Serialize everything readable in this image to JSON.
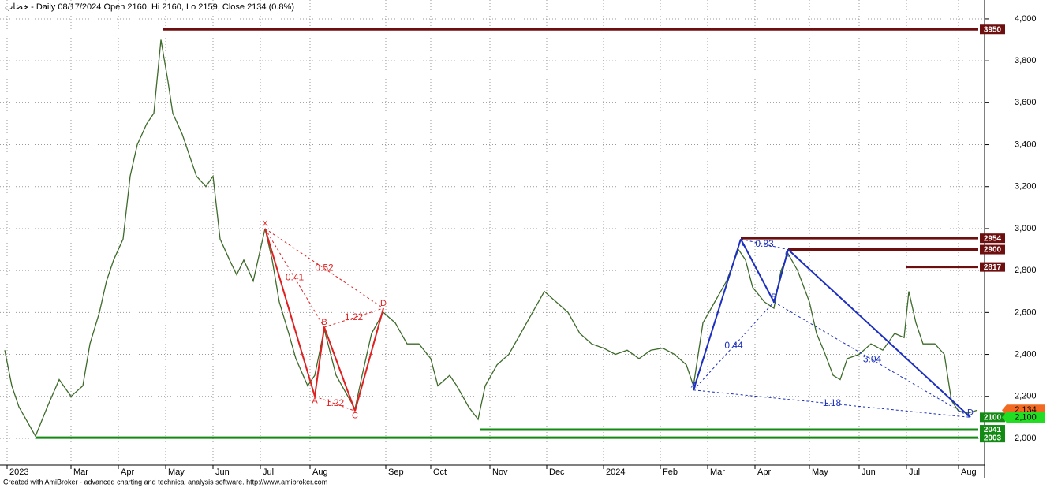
{
  "chart_data": {
    "type": "line",
    "title": "خضاب - Daily 08/17/2024 Open 2160, Hi 2160, Lo 2159, Close 2134 (0.8%)",
    "footer": "Created with AmiBroker - advanced charting and technical analysis software. http://www.amibroker.com",
    "grid": true,
    "xlim": [
      0,
      416
    ],
    "ylim": [
      1872,
      4090
    ],
    "xticks": [
      {
        "value": 3,
        "label": "2023"
      },
      {
        "value": 30,
        "label": "Mar"
      },
      {
        "value": 50,
        "label": "Apr"
      },
      {
        "value": 70,
        "label": "May"
      },
      {
        "value": 90,
        "label": "Jun"
      },
      {
        "value": 110,
        "label": "Jul"
      },
      {
        "value": 131,
        "label": "Aug"
      },
      {
        "value": 163,
        "label": "Sep"
      },
      {
        "value": 182,
        "label": "Oct"
      },
      {
        "value": 207,
        "label": "Nov"
      },
      {
        "value": 231,
        "label": "Dec"
      },
      {
        "value": 255,
        "label": "2024"
      },
      {
        "value": 279,
        "label": "Feb"
      },
      {
        "value": 299,
        "label": "Mar"
      },
      {
        "value": 319,
        "label": "Apr"
      },
      {
        "value": 342,
        "label": "May"
      },
      {
        "value": 363,
        "label": "Jun"
      },
      {
        "value": 383,
        "label": "Jul"
      },
      {
        "value": 405,
        "label": "Aug"
      }
    ],
    "yticks": [
      {
        "value": 2000,
        "label": "2,000"
      },
      {
        "value": 2200,
        "label": "2,200"
      },
      {
        "value": 2400,
        "label": "2,400"
      },
      {
        "value": 2600,
        "label": "2,600"
      },
      {
        "value": 2800,
        "label": "2,800"
      },
      {
        "value": 3000,
        "label": "3,000"
      },
      {
        "value": 3200,
        "label": "3,200"
      },
      {
        "value": 3400,
        "label": "3,400"
      },
      {
        "value": 3600,
        "label": "3,600"
      },
      {
        "value": 3800,
        "label": "3,800"
      },
      {
        "value": 4000,
        "label": "4,000"
      }
    ],
    "series": [
      {
        "name": "Close",
        "color": "#3d6b2a",
        "x": [
          2,
          5,
          8,
          15,
          20,
          25,
          30,
          35,
          38,
          42,
          45,
          48,
          52,
          55,
          58,
          62,
          65,
          68,
          71,
          73,
          77,
          80,
          83,
          87,
          90,
          93,
          97,
          100,
          103,
          107,
          112,
          115,
          118,
          122,
          125,
          130,
          133,
          137,
          142,
          147,
          150,
          153,
          157,
          162,
          167,
          172,
          177,
          182,
          185,
          190,
          193,
          198,
          202,
          205,
          210,
          215,
          220,
          225,
          230,
          235,
          240,
          245,
          250,
          255,
          260,
          265,
          270,
          275,
          280,
          285,
          290,
          293,
          297,
          302,
          307,
          312,
          315,
          318,
          323,
          327,
          330,
          333,
          337,
          342,
          345,
          348,
          352,
          355,
          358,
          363,
          368,
          373,
          378,
          382,
          384,
          387,
          390,
          395,
          399,
          402,
          405,
          409,
          413
        ],
        "values": [
          2420,
          2250,
          2150,
          2010,
          2150,
          2280,
          2200,
          2250,
          2450,
          2600,
          2750,
          2850,
          2950,
          3250,
          3400,
          3500,
          3550,
          3900,
          3700,
          3550,
          3450,
          3350,
          3250,
          3200,
          3250,
          2950,
          2850,
          2780,
          2850,
          2750,
          3000,
          2850,
          2650,
          2500,
          2380,
          2250,
          2300,
          2520,
          2300,
          2200,
          2140,
          2300,
          2500,
          2600,
          2550,
          2450,
          2450,
          2380,
          2250,
          2300,
          2250,
          2150,
          2090,
          2250,
          2350,
          2400,
          2500,
          2600,
          2700,
          2650,
          2600,
          2500,
          2450,
          2430,
          2400,
          2420,
          2380,
          2420,
          2430,
          2400,
          2350,
          2250,
          2550,
          2650,
          2750,
          2900,
          2850,
          2720,
          2650,
          2620,
          2800,
          2880,
          2800,
          2650,
          2500,
          2420,
          2300,
          2280,
          2380,
          2400,
          2450,
          2420,
          2500,
          2480,
          2700,
          2550,
          2450,
          2450,
          2400,
          2180,
          2130,
          2120,
          2134
        ]
      }
    ],
    "levels": [
      {
        "value": 3950,
        "from": 69,
        "color": "#6e0f0f"
      },
      {
        "value": 2954,
        "from": 313,
        "color": "#6e0f0f"
      },
      {
        "value": 2900,
        "from": 333,
        "color": "#6e0f0f"
      },
      {
        "value": 2817,
        "from": 383,
        "color": "#6e0f0f"
      },
      {
        "value": 2100,
        "color": "#138a13"
      },
      {
        "value": 2041,
        "from": 203,
        "color": "#138a13"
      },
      {
        "value": 2003,
        "from": 15,
        "color": "#138a13"
      }
    ],
    "price_labels": [
      {
        "value": 2134,
        "label": "2,134",
        "color": "#f26a22"
      },
      {
        "value": 2100,
        "label": "2,100",
        "color": "#22dd22"
      }
    ],
    "patterns": [
      {
        "color": "#e02020",
        "points": [
          {
            "label": "X",
            "x": 112,
            "value": 3000
          },
          {
            "label": "A",
            "x": 133,
            "value": 2200
          },
          {
            "label": "B",
            "x": 137,
            "value": 2530
          },
          {
            "label": "C",
            "x": 150,
            "value": 2130
          },
          {
            "label": "D",
            "x": 162,
            "value": 2620
          }
        ],
        "ratios": [
          "0.52",
          "0.41",
          "1.22",
          "1.22"
        ]
      },
      {
        "color": "#1c2fc0",
        "points": [
          {
            "label": "X",
            "x": 293,
            "value": 2230
          },
          {
            "label": "A",
            "x": 313,
            "value": 2950
          },
          {
            "label": "B",
            "x": 327,
            "value": 2650
          },
          {
            "label": "C",
            "x": 333,
            "value": 2900
          },
          {
            "label": "D",
            "x": 410,
            "value": 2100
          }
        ],
        "ratios": [
          "1.18",
          "0.44",
          "3.04",
          "0.83"
        ]
      }
    ]
  }
}
